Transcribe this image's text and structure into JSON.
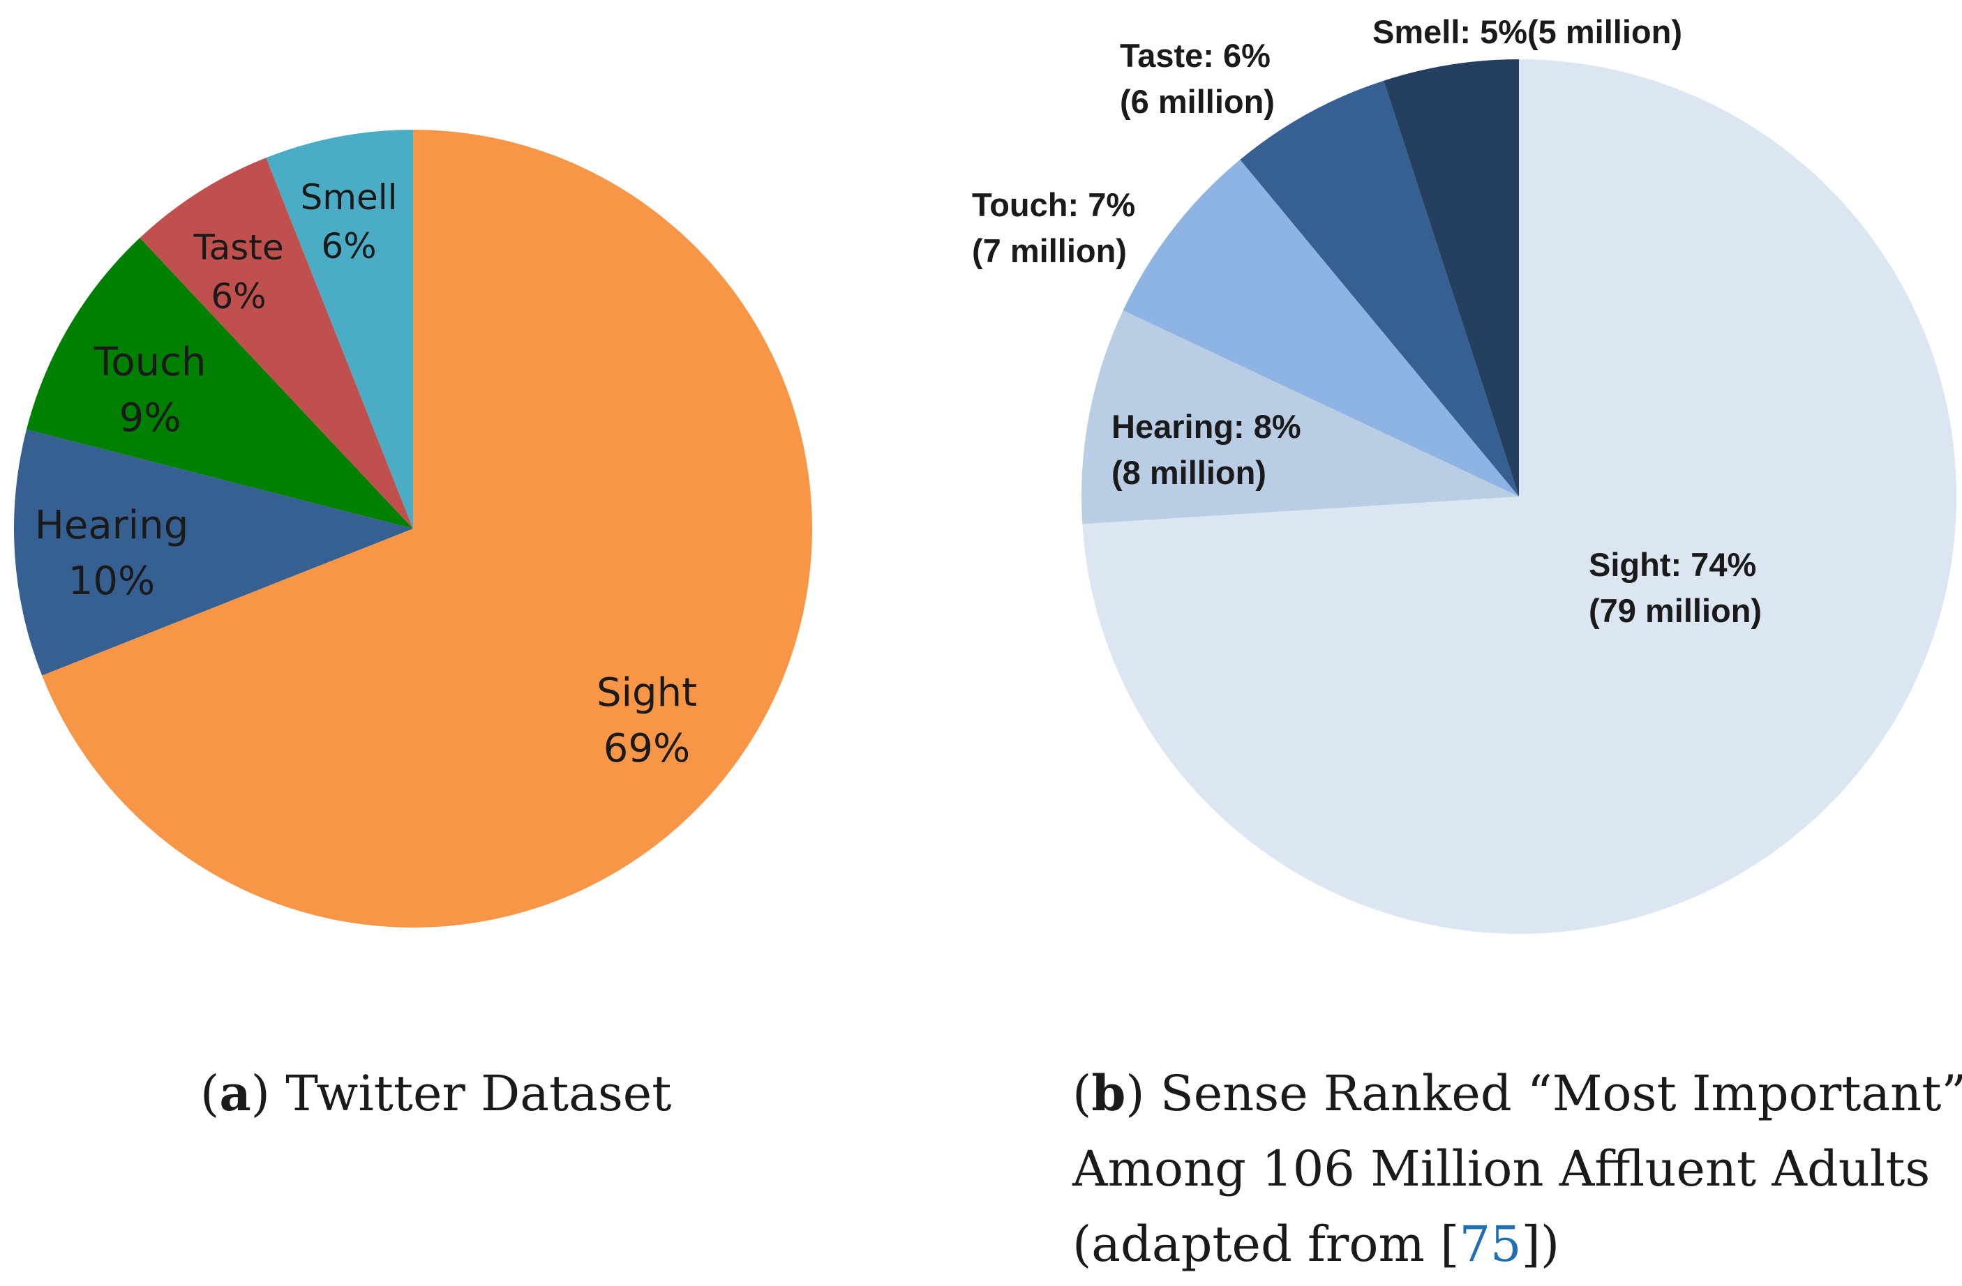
{
  "chart_data": [
    {
      "type": "pie",
      "title": "",
      "caption_marker": "a",
      "caption_text": "Twitter Dataset",
      "start": "12 o'clock, clockwise",
      "slices": [
        {
          "name": "Sight",
          "value": 69,
          "label": "69%",
          "color": "#F79646"
        },
        {
          "name": "Hearing",
          "value": 10,
          "label": "10%",
          "color": "#366092"
        },
        {
          "name": "Touch",
          "value": 9,
          "label": "9%",
          "color": "#008000"
        },
        {
          "name": "Taste",
          "value": 6,
          "label": "6%",
          "color": "#C0504D"
        },
        {
          "name": "Smell",
          "value": 6,
          "label": "6%",
          "color": "#4BACC6"
        }
      ]
    },
    {
      "type": "pie",
      "title": "",
      "caption_marker": "b",
      "caption_lines": [
        "Sense Ranked “Most Important”",
        "Among 106 Million Affluent Adults",
        "(adapted from ["
      ],
      "caption_citation": "75",
      "caption_end": "])",
      "start": "12 o'clock, clockwise",
      "slices": [
        {
          "name": "Sight",
          "value": 74,
          "line1": "Sight: 74%",
          "line2": "(79 million)",
          "color": "#DCE6F2"
        },
        {
          "name": "Hearing",
          "value": 8,
          "line1": "Hearing: 8%",
          "line2": "(8 million)",
          "color": "#B9CDE5"
        },
        {
          "name": "Touch",
          "value": 7,
          "line1": "Touch: 7%",
          "line2": "(7 million)",
          "color": "#8EB4E3"
        },
        {
          "name": "Taste",
          "value": 6,
          "line1": "Taste: 6%",
          "line2": "(6 million)",
          "color": "#366092"
        },
        {
          "name": "Smell",
          "value": 5,
          "line1": "Smell: 5%(5 million)",
          "line2": "",
          "color": "#243F60"
        }
      ]
    }
  ]
}
